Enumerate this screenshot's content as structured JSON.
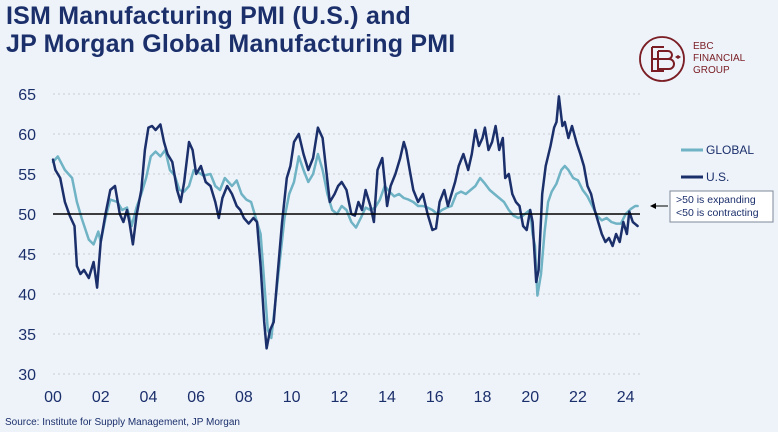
{
  "title_line1": "ISM Manufacturing PMI (U.S.) and",
  "title_line2": "JP Morgan Global Manufacturing PMI",
  "logo": {
    "line1": "EBC",
    "line2": "FINANCIAL",
    "line3": "GROUP",
    "color": "#7a1d24"
  },
  "source": "Source:  Institute for Supply Management, JP Morgan",
  "annotation": {
    "line1": ">50 is expanding",
    "line2": "<50 is contracting"
  },
  "colors": {
    "global": "#6fb3c5",
    "us": "#1b2f6b",
    "reference": "#000000",
    "axis_text": "#1b2f6b",
    "grid": "#c9ccd2"
  },
  "chart_data": {
    "type": "line",
    "title": "ISM Manufacturing PMI (U.S.) and JP Morgan Global Manufacturing PMI",
    "x_ticks": [
      "00",
      "02",
      "04",
      "06",
      "08",
      "10",
      "12",
      "14",
      "16",
      "18",
      "20",
      "22",
      "24"
    ],
    "x_tick_years": [
      2000,
      2002,
      2004,
      2006,
      2008,
      2010,
      2012,
      2014,
      2016,
      2018,
      2020,
      2022,
      2024
    ],
    "xlim": [
      2000,
      2024.6
    ],
    "y_ticks": [
      30,
      35,
      40,
      45,
      50,
      55,
      60,
      65
    ],
    "ylim": [
      30,
      65
    ],
    "grid": "horizontal dashed",
    "legend": "right",
    "reference_line": 50,
    "series": [
      {
        "name": "GLOBAL",
        "points": [
          [
            2000.0,
            56.5
          ],
          [
            2000.2,
            57.2
          ],
          [
            2000.5,
            55.5
          ],
          [
            2000.8,
            54.5
          ],
          [
            2001.0,
            51.5
          ],
          [
            2001.2,
            49.5
          ],
          [
            2001.5,
            46.8
          ],
          [
            2001.7,
            46.2
          ],
          [
            2001.9,
            47.8
          ],
          [
            2002.0,
            46.5
          ],
          [
            2002.2,
            49.5
          ],
          [
            2002.4,
            51.8
          ],
          [
            2002.7,
            51.5
          ],
          [
            2002.9,
            50.5
          ],
          [
            2003.1,
            50.8
          ],
          [
            2003.3,
            48.5
          ],
          [
            2003.5,
            50.8
          ],
          [
            2003.7,
            52.5
          ],
          [
            2003.9,
            54.5
          ],
          [
            2004.1,
            57.2
          ],
          [
            2004.3,
            57.8
          ],
          [
            2004.5,
            57.2
          ],
          [
            2004.7,
            58.0
          ],
          [
            2004.9,
            55.5
          ],
          [
            2005.1,
            54.8
          ],
          [
            2005.3,
            53.0
          ],
          [
            2005.5,
            52.8
          ],
          [
            2005.7,
            53.5
          ],
          [
            2005.9,
            55.5
          ],
          [
            2006.1,
            55.2
          ],
          [
            2006.3,
            54.8
          ],
          [
            2006.6,
            55.0
          ],
          [
            2006.8,
            53.5
          ],
          [
            2007.0,
            53.0
          ],
          [
            2007.2,
            54.5
          ],
          [
            2007.5,
            53.5
          ],
          [
            2007.7,
            54.2
          ],
          [
            2007.9,
            52.5
          ],
          [
            2008.1,
            51.8
          ],
          [
            2008.3,
            51.5
          ],
          [
            2008.5,
            49.5
          ],
          [
            2008.7,
            47.5
          ],
          [
            2008.85,
            41.5
          ],
          [
            2009.0,
            35.5
          ],
          [
            2009.15,
            34.5
          ],
          [
            2009.3,
            38.5
          ],
          [
            2009.5,
            44.0
          ],
          [
            2009.7,
            49.5
          ],
          [
            2009.9,
            52.5
          ],
          [
            2010.1,
            54.0
          ],
          [
            2010.3,
            57.2
          ],
          [
            2010.5,
            55.5
          ],
          [
            2010.7,
            54.0
          ],
          [
            2010.9,
            55.0
          ],
          [
            2011.1,
            57.5
          ],
          [
            2011.3,
            55.5
          ],
          [
            2011.5,
            52.5
          ],
          [
            2011.7,
            50.5
          ],
          [
            2011.9,
            50.0
          ],
          [
            2012.1,
            51.0
          ],
          [
            2012.3,
            50.5
          ],
          [
            2012.5,
            49.0
          ],
          [
            2012.7,
            48.3
          ],
          [
            2012.9,
            49.5
          ],
          [
            2013.1,
            50.8
          ],
          [
            2013.3,
            50.5
          ],
          [
            2013.5,
            50.8
          ],
          [
            2013.7,
            51.8
          ],
          [
            2013.9,
            53.5
          ],
          [
            2014.1,
            52.8
          ],
          [
            2014.3,
            52.2
          ],
          [
            2014.5,
            52.5
          ],
          [
            2014.7,
            52.0
          ],
          [
            2014.9,
            51.8
          ],
          [
            2015.1,
            51.5
          ],
          [
            2015.3,
            51.0
          ],
          [
            2015.5,
            51.0
          ],
          [
            2015.7,
            50.8
          ],
          [
            2015.9,
            50.5
          ],
          [
            2016.1,
            50.0
          ],
          [
            2016.3,
            50.5
          ],
          [
            2016.5,
            50.8
          ],
          [
            2016.7,
            51.0
          ],
          [
            2016.9,
            52.5
          ],
          [
            2017.1,
            52.8
          ],
          [
            2017.3,
            52.5
          ],
          [
            2017.5,
            53.0
          ],
          [
            2017.7,
            53.5
          ],
          [
            2017.9,
            54.5
          ],
          [
            2018.1,
            53.8
          ],
          [
            2018.3,
            53.0
          ],
          [
            2018.5,
            52.5
          ],
          [
            2018.7,
            52.0
          ],
          [
            2018.9,
            51.5
          ],
          [
            2019.1,
            50.5
          ],
          [
            2019.3,
            49.8
          ],
          [
            2019.5,
            49.5
          ],
          [
            2019.7,
            49.8
          ],
          [
            2019.9,
            50.3
          ],
          [
            2020.0,
            50.5
          ],
          [
            2020.1,
            47.5
          ],
          [
            2020.2,
            46.0
          ],
          [
            2020.3,
            39.8
          ],
          [
            2020.45,
            42.5
          ],
          [
            2020.6,
            47.8
          ],
          [
            2020.75,
            51.5
          ],
          [
            2020.9,
            52.8
          ],
          [
            2021.1,
            53.8
          ],
          [
            2021.3,
            55.5
          ],
          [
            2021.45,
            56.0
          ],
          [
            2021.6,
            55.5
          ],
          [
            2021.8,
            54.5
          ],
          [
            2022.0,
            54.2
          ],
          [
            2022.2,
            53.0
          ],
          [
            2022.4,
            52.2
          ],
          [
            2022.6,
            51.0
          ],
          [
            2022.8,
            49.8
          ],
          [
            2023.0,
            49.2
          ],
          [
            2023.2,
            49.5
          ],
          [
            2023.4,
            49.0
          ],
          [
            2023.6,
            48.8
          ],
          [
            2023.8,
            48.8
          ],
          [
            2024.0,
            50.0
          ],
          [
            2024.2,
            50.6
          ],
          [
            2024.4,
            51.0
          ],
          [
            2024.5,
            51.0
          ]
        ]
      },
      {
        "name": "U.S.",
        "points": [
          [
            2000.0,
            56.8
          ],
          [
            2000.1,
            55.5
          ],
          [
            2000.3,
            54.5
          ],
          [
            2000.5,
            51.5
          ],
          [
            2000.7,
            49.8
          ],
          [
            2000.9,
            48.5
          ],
          [
            2001.0,
            43.5
          ],
          [
            2001.15,
            42.5
          ],
          [
            2001.3,
            43.0
          ],
          [
            2001.5,
            42.0
          ],
          [
            2001.7,
            44.0
          ],
          [
            2001.85,
            40.8
          ],
          [
            2002.0,
            46.5
          ],
          [
            2002.2,
            50.0
          ],
          [
            2002.4,
            53.0
          ],
          [
            2002.6,
            53.5
          ],
          [
            2002.8,
            50.0
          ],
          [
            2002.95,
            49.0
          ],
          [
            2003.1,
            50.5
          ],
          [
            2003.2,
            49.0
          ],
          [
            2003.35,
            46.2
          ],
          [
            2003.5,
            49.8
          ],
          [
            2003.7,
            53.0
          ],
          [
            2003.85,
            58.0
          ],
          [
            2004.0,
            60.8
          ],
          [
            2004.15,
            61.0
          ],
          [
            2004.3,
            60.5
          ],
          [
            2004.5,
            61.2
          ],
          [
            2004.65,
            59.0
          ],
          [
            2004.8,
            57.5
          ],
          [
            2005.0,
            56.5
          ],
          [
            2005.2,
            53.0
          ],
          [
            2005.35,
            51.5
          ],
          [
            2005.5,
            54.0
          ],
          [
            2005.7,
            59.0
          ],
          [
            2005.85,
            58.0
          ],
          [
            2006.0,
            55.0
          ],
          [
            2006.2,
            56.0
          ],
          [
            2006.4,
            54.0
          ],
          [
            2006.6,
            53.5
          ],
          [
            2006.8,
            51.5
          ],
          [
            2006.95,
            49.5
          ],
          [
            2007.1,
            52.0
          ],
          [
            2007.3,
            53.5
          ],
          [
            2007.5,
            52.5
          ],
          [
            2007.7,
            51.0
          ],
          [
            2007.85,
            50.5
          ],
          [
            2008.0,
            49.5
          ],
          [
            2008.2,
            48.8
          ],
          [
            2008.4,
            49.5
          ],
          [
            2008.55,
            49.0
          ],
          [
            2008.7,
            43.5
          ],
          [
            2008.85,
            36.5
          ],
          [
            2008.95,
            33.2
          ],
          [
            2009.1,
            35.5
          ],
          [
            2009.25,
            36.5
          ],
          [
            2009.4,
            42.0
          ],
          [
            2009.6,
            49.0
          ],
          [
            2009.8,
            54.5
          ],
          [
            2009.95,
            56.0
          ],
          [
            2010.1,
            59.0
          ],
          [
            2010.3,
            60.0
          ],
          [
            2010.5,
            57.5
          ],
          [
            2010.7,
            55.5
          ],
          [
            2010.9,
            57.0
          ],
          [
            2011.1,
            60.8
          ],
          [
            2011.3,
            59.5
          ],
          [
            2011.45,
            55.5
          ],
          [
            2011.6,
            51.5
          ],
          [
            2011.8,
            52.5
          ],
          [
            2011.95,
            53.5
          ],
          [
            2012.1,
            54.0
          ],
          [
            2012.3,
            53.0
          ],
          [
            2012.5,
            50.0
          ],
          [
            2012.65,
            49.8
          ],
          [
            2012.8,
            51.5
          ],
          [
            2012.95,
            50.5
          ],
          [
            2013.1,
            53.0
          ],
          [
            2013.3,
            51.0
          ],
          [
            2013.45,
            49.0
          ],
          [
            2013.6,
            55.5
          ],
          [
            2013.8,
            57.0
          ],
          [
            2014.0,
            51.0
          ],
          [
            2014.15,
            53.5
          ],
          [
            2014.35,
            55.0
          ],
          [
            2014.55,
            57.0
          ],
          [
            2014.7,
            59.0
          ],
          [
            2014.8,
            58.0
          ],
          [
            2014.95,
            55.5
          ],
          [
            2015.1,
            53.0
          ],
          [
            2015.3,
            51.5
          ],
          [
            2015.5,
            52.5
          ],
          [
            2015.7,
            50.0
          ],
          [
            2015.9,
            48.0
          ],
          [
            2016.05,
            48.2
          ],
          [
            2016.2,
            51.5
          ],
          [
            2016.4,
            53.0
          ],
          [
            2016.55,
            51.0
          ],
          [
            2016.7,
            52.5
          ],
          [
            2016.85,
            54.0
          ],
          [
            2017.0,
            56.0
          ],
          [
            2017.2,
            57.5
          ],
          [
            2017.4,
            55.5
          ],
          [
            2017.55,
            57.5
          ],
          [
            2017.7,
            60.5
          ],
          [
            2017.85,
            58.5
          ],
          [
            2018.0,
            59.5
          ],
          [
            2018.1,
            60.8
          ],
          [
            2018.25,
            58.0
          ],
          [
            2018.4,
            59.0
          ],
          [
            2018.55,
            61.0
          ],
          [
            2018.7,
            58.0
          ],
          [
            2018.85,
            59.5
          ],
          [
            2018.95,
            54.5
          ],
          [
            2019.1,
            55.0
          ],
          [
            2019.25,
            52.5
          ],
          [
            2019.4,
            51.5
          ],
          [
            2019.55,
            51.0
          ],
          [
            2019.7,
            48.5
          ],
          [
            2019.85,
            48.0
          ],
          [
            2020.0,
            50.5
          ],
          [
            2020.1,
            49.0
          ],
          [
            2020.25,
            41.5
          ],
          [
            2020.35,
            43.0
          ],
          [
            2020.5,
            52.5
          ],
          [
            2020.65,
            56.0
          ],
          [
            2020.85,
            58.5
          ],
          [
            2021.0,
            60.8
          ],
          [
            2021.1,
            61.5
          ],
          [
            2021.2,
            64.7
          ],
          [
            2021.35,
            61.0
          ],
          [
            2021.45,
            61.5
          ],
          [
            2021.6,
            59.5
          ],
          [
            2021.75,
            61.0
          ],
          [
            2021.95,
            58.8
          ],
          [
            2022.1,
            57.5
          ],
          [
            2022.25,
            56.0
          ],
          [
            2022.4,
            53.5
          ],
          [
            2022.55,
            52.5
          ],
          [
            2022.7,
            50.5
          ],
          [
            2022.85,
            49.0
          ],
          [
            2023.0,
            47.5
          ],
          [
            2023.15,
            46.5
          ],
          [
            2023.3,
            47.0
          ],
          [
            2023.45,
            46.0
          ],
          [
            2023.6,
            47.5
          ],
          [
            2023.75,
            46.5
          ],
          [
            2023.9,
            49.0
          ],
          [
            2024.05,
            47.5
          ],
          [
            2024.15,
            50.3
          ],
          [
            2024.3,
            49.0
          ],
          [
            2024.5,
            48.5
          ]
        ]
      }
    ]
  }
}
